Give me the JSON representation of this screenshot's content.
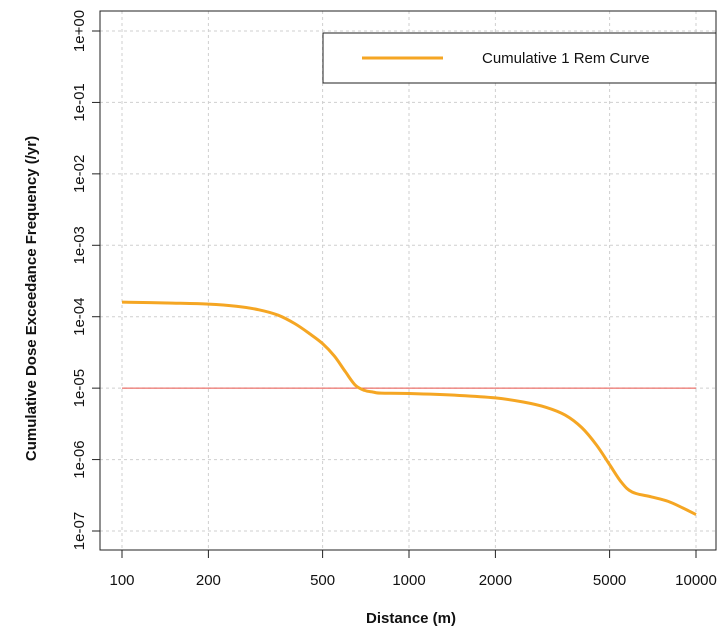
{
  "chart_data": {
    "type": "line",
    "title": "",
    "xlabel": "Distance (m)",
    "ylabel": "Cumulative Dose Exceedance Frequency (/yr)",
    "x_scale": "log",
    "y_scale": "log",
    "xlim": [
      100,
      10000
    ],
    "ylim": [
      1e-07,
      1
    ],
    "x_ticks": [
      100,
      200,
      500,
      1000,
      2000,
      5000,
      10000
    ],
    "x_tick_labels": [
      "100",
      "200",
      "500",
      "1000",
      "2000",
      "5000",
      "10000"
    ],
    "y_ticks": [
      1,
      0.1,
      0.01,
      0.001,
      0.0001,
      1e-05,
      1e-06,
      1e-07
    ],
    "y_tick_labels": [
      "1e+00",
      "1e-01",
      "1e-02",
      "1e-03",
      "1e-04",
      "1e-05",
      "1e-06",
      "1e-07"
    ],
    "grid": true,
    "legend_position": "top-right",
    "series": [
      {
        "name": "Cumulative 1 Rem Curve",
        "color": "#f5a623",
        "x": [
          100,
          150,
          200,
          250,
          300,
          350,
          400,
          450,
          500,
          550,
          600,
          650,
          700,
          750,
          800,
          1000,
          1500,
          2000,
          2500,
          3000,
          3500,
          4000,
          4500,
          5000,
          5500,
          6000,
          7000,
          8000,
          9000,
          10000
        ],
        "y": [
          0.00016,
          0.000155,
          0.00015,
          0.00014,
          0.000125,
          0.000105,
          8e-05,
          5.8e-05,
          4.2e-05,
          2.8e-05,
          1.7e-05,
          1.1e-05,
          9.3e-06,
          8.8e-06,
          8.5e-06,
          8.4e-06,
          7.9e-06,
          7.3e-06,
          6.4e-06,
          5.4e-06,
          4.2e-06,
          2.8e-06,
          1.6e-06,
          8.5e-07,
          4.8e-07,
          3.5e-07,
          3e-07,
          2.6e-07,
          2.1e-07,
          1.7e-07
        ]
      },
      {
        "color": "#e8524a",
        "x": [
          100,
          10000
        ],
        "y": [
          1e-05,
          1e-05
        ]
      }
    ]
  }
}
